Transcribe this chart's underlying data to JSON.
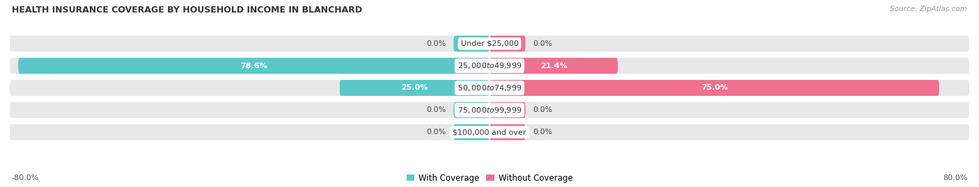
{
  "title": "HEALTH INSURANCE COVERAGE BY HOUSEHOLD INCOME IN BLANCHARD",
  "source": "Source: ZipAtlas.com",
  "categories": [
    "Under $25,000",
    "$25,000 to $49,999",
    "$50,000 to $74,999",
    "$75,000 to $99,999",
    "$100,000 and over"
  ],
  "with_coverage": [
    0.0,
    78.6,
    25.0,
    0.0,
    0.0
  ],
  "without_coverage": [
    0.0,
    21.4,
    75.0,
    0.0,
    0.0
  ],
  "color_with": "#5bc8c8",
  "color_without": "#f07090",
  "color_bg_bar": "#e8e8e8",
  "color_bg_fig": "#ffffff",
  "x_left_label": "-80.0%",
  "x_right_label": "80.0%",
  "xlim": [
    -80,
    80
  ],
  "bar_height": 0.72,
  "stub_size": 6.0,
  "legend_with": "With Coverage",
  "legend_without": "Without Coverage",
  "inside_label_threshold": 15.0
}
